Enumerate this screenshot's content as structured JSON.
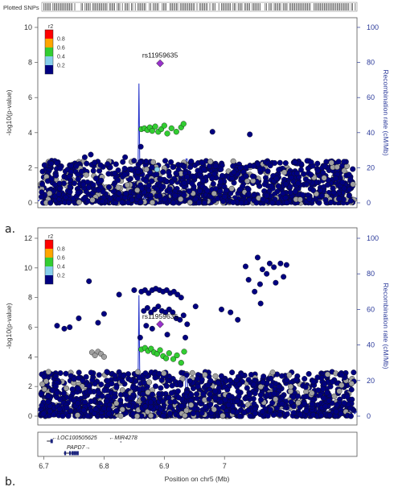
{
  "figure": {
    "panel_a_letter": "a.",
    "panel_b_letter": "b.",
    "plotted_snps_label": "Plotted SNPs",
    "x_axis_label": "Position on chr5 (Mb)",
    "x_ticks": [
      "6.7",
      "6.8",
      "6.9",
      "7"
    ],
    "genes": [
      {
        "name": "LOC100505625",
        "strand": "-"
      },
      {
        "name": "MIR4278",
        "strand": "-"
      },
      {
        "name": "PAPD7",
        "strand": "+"
      }
    ]
  },
  "colors": {
    "ld_bins": [
      "#000080",
      "#87ceeb",
      "#32cd32",
      "#ffa500",
      "#ff0000"
    ],
    "no_ld": "#a0a0a0",
    "lead_snp": "#9932cc",
    "recombination": "#1f2ec8",
    "axis_right": "#2b3a9a"
  },
  "chart_data": [
    {
      "panel": "a",
      "type": "scatter",
      "x_unit": "Mb",
      "xlim": [
        6.69,
        7.22
      ],
      "ylim": [
        0,
        10
      ],
      "y_ticks": [
        "0",
        "2",
        "4",
        "6",
        "8",
        "10"
      ],
      "y2_ticks": [
        "0",
        "20",
        "40",
        "60",
        "80",
        "100"
      ],
      "ylabel": "-log10(p-value)",
      "y2label": "Recombination rate (cM/Mb)",
      "y2lim": [
        0,
        100
      ],
      "legend": {
        "title": "r2",
        "labels": [
          "0.8",
          "0.6",
          "0.4",
          "0.2"
        ],
        "position": "top-left"
      },
      "lead_snp": {
        "name": "rs11959635",
        "x": 6.893,
        "y": 7.95
      },
      "ld_0_4_to_0_6_points": [
        {
          "x": 6.862,
          "y": 4.2
        },
        {
          "x": 6.867,
          "y": 4.25
        },
        {
          "x": 6.872,
          "y": 4.15
        },
        {
          "x": 6.876,
          "y": 4.3
        },
        {
          "x": 6.88,
          "y": 4.1
        },
        {
          "x": 6.885,
          "y": 4.35
        },
        {
          "x": 6.89,
          "y": 4.05
        },
        {
          "x": 6.895,
          "y": 4.2
        },
        {
          "x": 6.9,
          "y": 4.4
        },
        {
          "x": 6.905,
          "y": 3.95
        },
        {
          "x": 6.912,
          "y": 4.25
        },
        {
          "x": 6.92,
          "y": 4.05
        },
        {
          "x": 6.928,
          "y": 4.3
        },
        {
          "x": 6.932,
          "y": 4.5
        }
      ],
      "ld_0_2_to_0_4_points": [
        {
          "x": 6.888,
          "y": 1.9
        }
      ],
      "notable_low_ld_points": [
        {
          "x": 6.98,
          "y": 4.05
        },
        {
          "x": 7.042,
          "y": 3.9
        },
        {
          "x": 6.861,
          "y": 3.2
        },
        {
          "x": 6.778,
          "y": 2.75
        },
        {
          "x": 6.835,
          "y": 2.6
        },
        {
          "x": 6.768,
          "y": 2.6
        }
      ],
      "recombination_peaks": [
        {
          "x": 6.858,
          "y2": 68
        },
        {
          "x": 6.937,
          "y2": 25
        }
      ],
      "background_max_y": 2.4
    },
    {
      "panel": "b",
      "type": "scatter",
      "x_unit": "Mb",
      "xlim": [
        6.69,
        7.22
      ],
      "ylim": [
        0,
        12
      ],
      "y_ticks": [
        "0",
        "2",
        "4",
        "6",
        "8",
        "10",
        "12"
      ],
      "y2_ticks": [
        "0",
        "20",
        "40",
        "60",
        "80",
        "100"
      ],
      "ylabel": "-log10(p-value)",
      "y2label": "Recombination rate (cM/Mb)",
      "y2lim": [
        0,
        100
      ],
      "legend": {
        "title": "r2",
        "labels": [
          "0.8",
          "0.6",
          "0.4",
          "0.2"
        ],
        "position": "top-left"
      },
      "lead_snp": {
        "name": "rs11959635",
        "x": 6.893,
        "y": 6.2
      },
      "ld_0_4_to_0_6_points": [
        {
          "x": 6.862,
          "y": 4.5
        },
        {
          "x": 6.868,
          "y": 4.6
        },
        {
          "x": 6.873,
          "y": 4.4
        },
        {
          "x": 6.878,
          "y": 4.55
        },
        {
          "x": 6.883,
          "y": 4.3
        },
        {
          "x": 6.888,
          "y": 4.2
        },
        {
          "x": 6.893,
          "y": 4.45
        },
        {
          "x": 6.898,
          "y": 4.05
        },
        {
          "x": 6.903,
          "y": 3.9
        },
        {
          "x": 6.908,
          "y": 4.25
        },
        {
          "x": 6.915,
          "y": 3.85
        },
        {
          "x": 6.921,
          "y": 4.1
        },
        {
          "x": 6.928,
          "y": 3.6
        },
        {
          "x": 6.933,
          "y": 4.35
        }
      ],
      "notable_low_ld_points": [
        {
          "x": 6.862,
          "y": 8.4
        },
        {
          "x": 6.868,
          "y": 8.5
        },
        {
          "x": 6.874,
          "y": 8.3
        },
        {
          "x": 6.88,
          "y": 8.5
        },
        {
          "x": 6.886,
          "y": 8.6
        },
        {
          "x": 6.892,
          "y": 8.5
        },
        {
          "x": 6.898,
          "y": 8.4
        },
        {
          "x": 6.904,
          "y": 8.5
        },
        {
          "x": 6.91,
          "y": 8.3
        },
        {
          "x": 6.916,
          "y": 8.4
        },
        {
          "x": 6.922,
          "y": 8.2
        },
        {
          "x": 6.928,
          "y": 8.0
        },
        {
          "x": 6.866,
          "y": 7.1
        },
        {
          "x": 6.872,
          "y": 7.3
        },
        {
          "x": 6.878,
          "y": 7.0
        },
        {
          "x": 6.884,
          "y": 7.2
        },
        {
          "x": 6.89,
          "y": 7.4
        },
        {
          "x": 6.896,
          "y": 7.1
        },
        {
          "x": 6.902,
          "y": 7.0
        },
        {
          "x": 6.908,
          "y": 7.2
        },
        {
          "x": 6.914,
          "y": 7.0
        },
        {
          "x": 6.92,
          "y": 6.6
        },
        {
          "x": 6.926,
          "y": 6.5
        },
        {
          "x": 6.932,
          "y": 6.8
        },
        {
          "x": 6.938,
          "y": 6.2
        },
        {
          "x": 6.87,
          "y": 6.1
        },
        {
          "x": 6.88,
          "y": 5.9
        },
        {
          "x": 6.86,
          "y": 5.3
        },
        {
          "x": 6.905,
          "y": 5.5
        },
        {
          "x": 6.935,
          "y": 5.3
        },
        {
          "x": 6.775,
          "y": 9.1
        },
        {
          "x": 6.825,
          "y": 8.2
        },
        {
          "x": 6.85,
          "y": 8.5
        },
        {
          "x": 6.722,
          "y": 6.1
        },
        {
          "x": 6.734,
          "y": 5.9
        },
        {
          "x": 6.743,
          "y": 6.0
        },
        {
          "x": 6.758,
          "y": 6.6
        },
        {
          "x": 6.79,
          "y": 6.3
        },
        {
          "x": 6.8,
          "y": 6.9
        },
        {
          "x": 6.952,
          "y": 7.4
        },
        {
          "x": 6.995,
          "y": 7.2
        },
        {
          "x": 7.035,
          "y": 10.1
        },
        {
          "x": 7.055,
          "y": 10.7
        },
        {
          "x": 7.063,
          "y": 9.9
        },
        {
          "x": 7.075,
          "y": 10.3
        },
        {
          "x": 7.082,
          "y": 10.05
        },
        {
          "x": 7.093,
          "y": 10.3
        },
        {
          "x": 7.103,
          "y": 10.2
        },
        {
          "x": 7.04,
          "y": 9.2
        },
        {
          "x": 7.05,
          "y": 8.4
        },
        {
          "x": 7.059,
          "y": 8.9
        },
        {
          "x": 7.07,
          "y": 9.6
        },
        {
          "x": 7.085,
          "y": 9.0
        },
        {
          "x": 7.098,
          "y": 9.4
        },
        {
          "x": 7.06,
          "y": 7.6
        },
        {
          "x": 7.01,
          "y": 7.0
        },
        {
          "x": 7.022,
          "y": 6.5
        }
      ],
      "grey_cluster_points": [
        {
          "x": 6.78,
          "y": 4.3
        },
        {
          "x": 6.785,
          "y": 4.1
        },
        {
          "x": 6.79,
          "y": 4.35
        },
        {
          "x": 6.795,
          "y": 4.2
        },
        {
          "x": 6.8,
          "y": 4.0
        }
      ],
      "recombination_peaks": [
        {
          "x": 6.858,
          "y2": 68
        },
        {
          "x": 6.937,
          "y2": 25
        }
      ],
      "background_max_y": 3.0
    }
  ]
}
